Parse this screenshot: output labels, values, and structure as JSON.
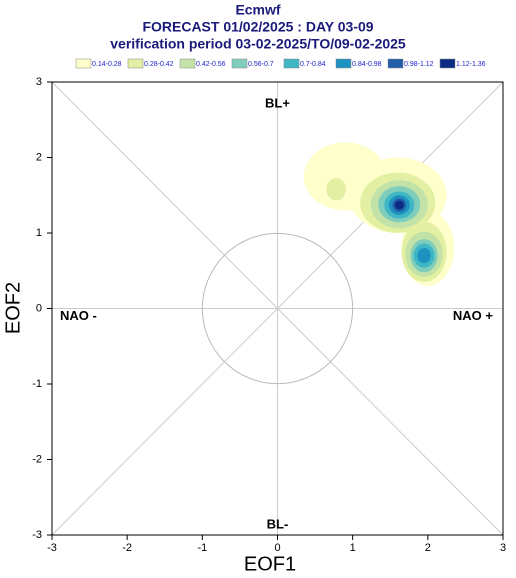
{
  "chart_data": {
    "type": "contour",
    "title": "Ecmwf",
    "subtitle": "FORECAST 01/02/2025 : DAY 03-09",
    "subtitle2": "verification period 03-02-2025/TO/09-02-2025",
    "x_label": "EOF1",
    "y_label": "EOF2",
    "annotations": [
      "BL+",
      "BL-",
      "NAO -",
      "NAO +"
    ],
    "xlim": [
      -3,
      3
    ],
    "ylim": [
      -3,
      3
    ],
    "xticks": [
      -3,
      -2,
      -1,
      0,
      1,
      2,
      3
    ],
    "yticks": [
      -3,
      -2,
      -1,
      0,
      1,
      2,
      3
    ],
    "series": [
      {
        "name": "0.14-0.28",
        "color": "#ffffcc",
        "ellipses": [
          {
            "x": 0.9,
            "y": 1.75,
            "rx": 0.55,
            "ry": 0.45
          },
          {
            "x": 1.6,
            "y": 1.5,
            "rx": 0.65,
            "ry": 0.5
          },
          {
            "x": 2.0,
            "y": 0.8,
            "rx": 0.35,
            "ry": 0.5
          }
        ]
      },
      {
        "name": "0.28-0.42",
        "color": "#e3f0a3",
        "ellipses": [
          {
            "x": 1.6,
            "y": 1.4,
            "rx": 0.5,
            "ry": 0.4
          },
          {
            "x": 1.95,
            "y": 0.75,
            "rx": 0.3,
            "ry": 0.4
          },
          {
            "x": 0.78,
            "y": 1.58,
            "rx": 0.13,
            "ry": 0.15
          }
        ]
      },
      {
        "name": "0.42-0.56",
        "color": "#c2e2a8",
        "ellipses": [
          {
            "x": 1.62,
            "y": 1.38,
            "rx": 0.38,
            "ry": 0.32
          },
          {
            "x": 1.95,
            "y": 0.72,
            "rx": 0.25,
            "ry": 0.3
          }
        ]
      },
      {
        "name": "0.56-0.7",
        "color": "#7fcdbb",
        "ellipses": [
          {
            "x": 1.62,
            "y": 1.38,
            "rx": 0.28,
            "ry": 0.24
          },
          {
            "x": 1.95,
            "y": 0.7,
            "rx": 0.18,
            "ry": 0.22
          }
        ]
      },
      {
        "name": "0.7-0.84",
        "color": "#41b6c4",
        "ellipses": [
          {
            "x": 1.62,
            "y": 1.37,
            "rx": 0.2,
            "ry": 0.18
          },
          {
            "x": 1.95,
            "y": 0.7,
            "rx": 0.14,
            "ry": 0.16
          }
        ]
      },
      {
        "name": "0.84-0.98",
        "color": "#1d91c0",
        "ellipses": [
          {
            "x": 1.62,
            "y": 1.37,
            "rx": 0.14,
            "ry": 0.13
          },
          {
            "x": 1.95,
            "y": 0.7,
            "rx": 0.09,
            "ry": 0.1
          }
        ]
      },
      {
        "name": "0.98-1.12",
        "color": "#225ea8",
        "ellipses": [
          {
            "x": 1.62,
            "y": 1.37,
            "rx": 0.09,
            "ry": 0.09
          }
        ]
      },
      {
        "name": "1.12-1.36",
        "color": "#0c2c84",
        "ellipses": [
          {
            "x": 1.62,
            "y": 1.37,
            "rx": 0.06,
            "ry": 0.06
          }
        ]
      }
    ]
  }
}
